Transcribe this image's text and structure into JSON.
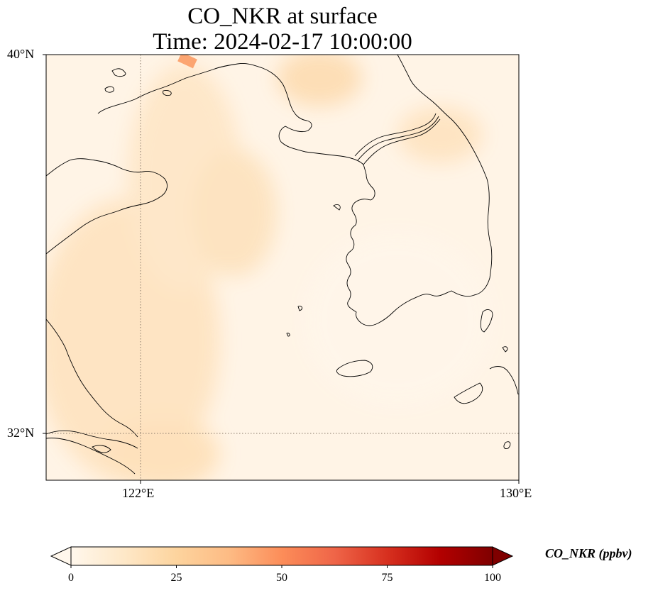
{
  "figure": {
    "title_line1": "CO_NKR at surface",
    "title_line2": "Time: 2024-02-17 10:00:00",
    "variable": "CO_NKR",
    "level": "surface",
    "time": "2024-02-17 10:00:00"
  },
  "map": {
    "projection": "PlateCarree",
    "lon_range": [
      120,
      130
    ],
    "lat_range": [
      31,
      40
    ],
    "gridlines": {
      "style": "dotted",
      "color": "#8a7a6a",
      "lons": [
        122
      ],
      "lats": [
        32
      ]
    },
    "coastline_color": "#000000"
  },
  "axes": {
    "lat_ticks": [
      "40°N",
      "32°N"
    ],
    "lon_ticks": [
      "122°E",
      "130°E"
    ]
  },
  "colorbar": {
    "colormap": "OrRd",
    "label": "CO_NKR (ppbv)",
    "min": 0,
    "max": 100,
    "extend": "both",
    "ticks": [
      "0",
      "25",
      "50",
      "75",
      "100"
    ],
    "stops": [
      "#fff7ec",
      "#fee8c8",
      "#fdd49e",
      "#fdbb84",
      "#fc8d59",
      "#ef6548",
      "#d7301f",
      "#b30000",
      "#7f0000"
    ]
  },
  "field_summary": {
    "background_range_ppbv": [
      2,
      15
    ],
    "max_hotspot_ppbv": 40
  }
}
